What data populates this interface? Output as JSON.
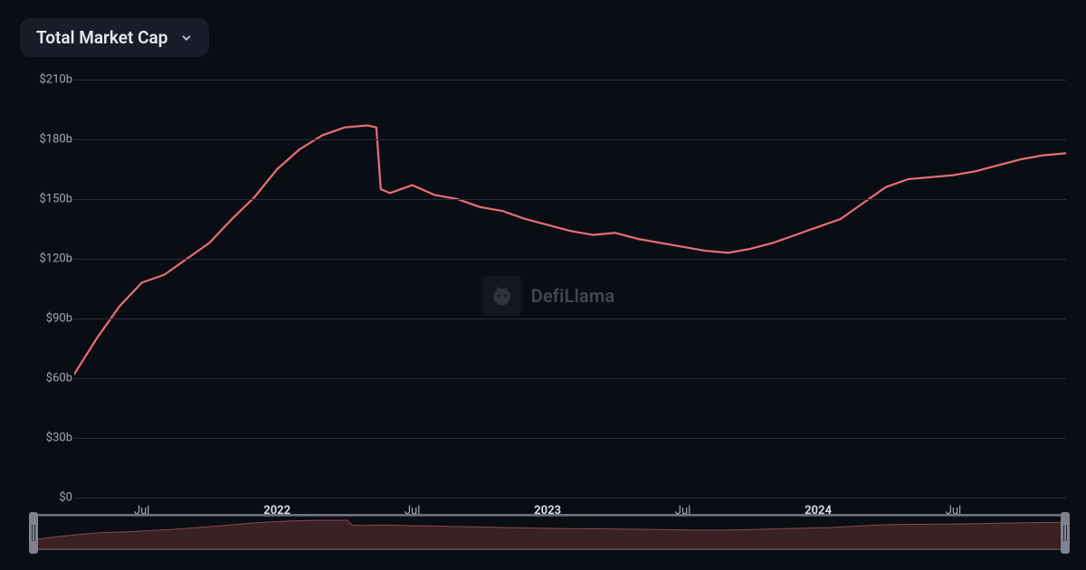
{
  "dropdown": {
    "label": "Total Market Cap",
    "chevron_color": "#c8cbd4"
  },
  "watermark": {
    "text": "DefiLlama",
    "icon_bg": "#2a2e3a"
  },
  "chart": {
    "type": "line",
    "line_color": "#e76e7a",
    "line_width": 2.2,
    "background_color": "#0b0d14",
    "grid_color": "#2a2e3a",
    "ylabel_color": "#a5a9b8",
    "xlabel_color": "#a5a9b8",
    "label_fontsize": 13,
    "ylim": [
      0,
      210
    ],
    "ytick_step": 30,
    "yticks": [
      "$0",
      "$30b",
      "$60b",
      "$90b",
      "$120b",
      "$150b",
      "$180b",
      "$210b"
    ],
    "x_range": [
      0,
      44
    ],
    "xticks": [
      {
        "pos": 3,
        "label": "Jul",
        "bold": false
      },
      {
        "pos": 9,
        "label": "2022",
        "bold": true
      },
      {
        "pos": 15,
        "label": "Jul",
        "bold": false
      },
      {
        "pos": 21,
        "label": "2023",
        "bold": true
      },
      {
        "pos": 27,
        "label": "Jul",
        "bold": false
      },
      {
        "pos": 33,
        "label": "2024",
        "bold": true
      },
      {
        "pos": 39,
        "label": "Jul",
        "bold": false
      }
    ],
    "series": [
      {
        "x": 0,
        "y": 62
      },
      {
        "x": 1,
        "y": 80
      },
      {
        "x": 2,
        "y": 96
      },
      {
        "x": 3,
        "y": 108
      },
      {
        "x": 4,
        "y": 112
      },
      {
        "x": 5,
        "y": 120
      },
      {
        "x": 6,
        "y": 128
      },
      {
        "x": 7,
        "y": 140
      },
      {
        "x": 8,
        "y": 151
      },
      {
        "x": 9,
        "y": 165
      },
      {
        "x": 10,
        "y": 175
      },
      {
        "x": 11,
        "y": 182
      },
      {
        "x": 12,
        "y": 186
      },
      {
        "x": 13,
        "y": 187
      },
      {
        "x": 13.4,
        "y": 186
      },
      {
        "x": 13.6,
        "y": 155
      },
      {
        "x": 14,
        "y": 153
      },
      {
        "x": 15,
        "y": 157
      },
      {
        "x": 16,
        "y": 152
      },
      {
        "x": 17,
        "y": 150
      },
      {
        "x": 18,
        "y": 146
      },
      {
        "x": 19,
        "y": 144
      },
      {
        "x": 20,
        "y": 140
      },
      {
        "x": 21,
        "y": 137
      },
      {
        "x": 22,
        "y": 134
      },
      {
        "x": 23,
        "y": 132
      },
      {
        "x": 24,
        "y": 133
      },
      {
        "x": 25,
        "y": 130
      },
      {
        "x": 26,
        "y": 128
      },
      {
        "x": 27,
        "y": 126
      },
      {
        "x": 28,
        "y": 124
      },
      {
        "x": 29,
        "y": 123
      },
      {
        "x": 30,
        "y": 125
      },
      {
        "x": 31,
        "y": 128
      },
      {
        "x": 32,
        "y": 132
      },
      {
        "x": 33,
        "y": 136
      },
      {
        "x": 34,
        "y": 140
      },
      {
        "x": 35,
        "y": 148
      },
      {
        "x": 36,
        "y": 156
      },
      {
        "x": 37,
        "y": 160
      },
      {
        "x": 38,
        "y": 161
      },
      {
        "x": 39,
        "y": 162
      },
      {
        "x": 40,
        "y": 164
      },
      {
        "x": 41,
        "y": 167
      },
      {
        "x": 42,
        "y": 170
      },
      {
        "x": 43,
        "y": 172
      },
      {
        "x": 44,
        "y": 173
      }
    ]
  },
  "brush": {
    "area_fill": "#3a2126",
    "area_stroke": "#824a50",
    "handle_color": "#7f838f",
    "track_border": "#4a4e5c"
  }
}
